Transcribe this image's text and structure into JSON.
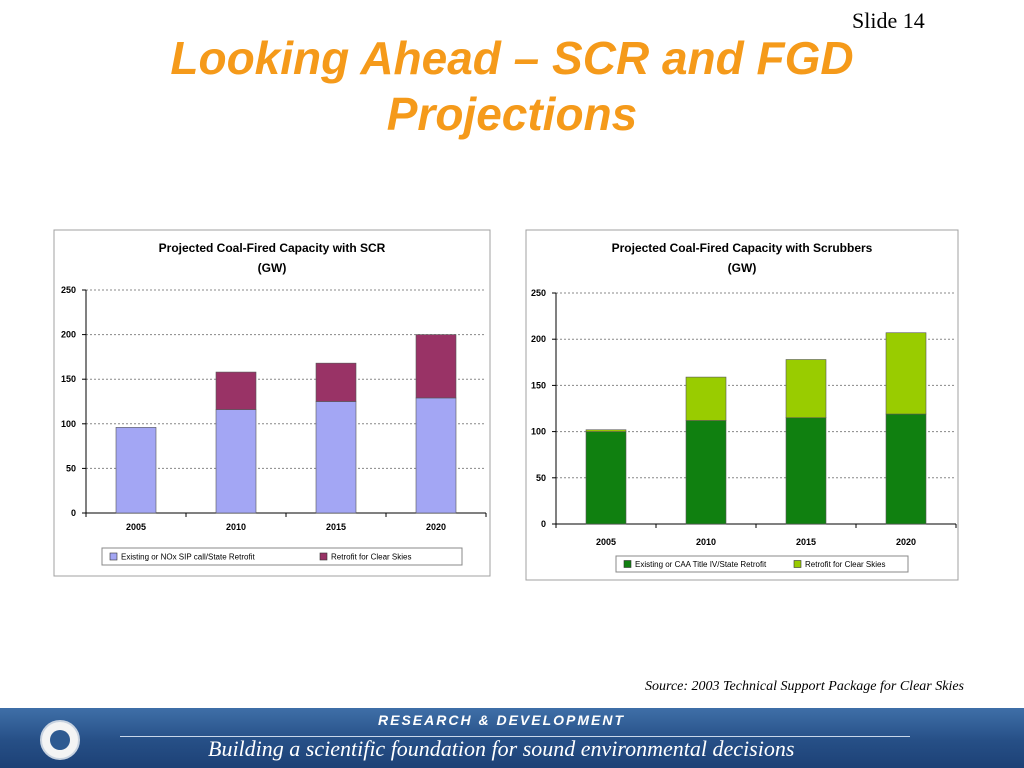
{
  "slide": {
    "number_label": "Slide 14",
    "title_line1": "Looking Ahead – SCR and FGD",
    "title_line2": "Projections"
  },
  "source": "Source: 2003 Technical Support Package for Clear Skies",
  "footer": {
    "heading": "RESEARCH & DEVELOPMENT",
    "tagline": "Building a scientific foundation for sound environmental decisions"
  },
  "chart_data": [
    {
      "type": "bar",
      "stacked": true,
      "title": "Projected Coal-Fired Capacity with SCR",
      "subtitle": "(GW)",
      "categories": [
        "2005",
        "2010",
        "2015",
        "2020"
      ],
      "series": [
        {
          "name": "Existing or NOx SIP call/State Retrofit",
          "values": [
            96,
            116,
            125,
            129
          ],
          "color": "#a3a6f4"
        },
        {
          "name": "Retrofit for Clear Skies",
          "values": [
            0,
            42,
            43,
            71
          ],
          "color": "#993366"
        }
      ],
      "ylim": [
        0,
        250
      ],
      "yticks": [
        0,
        50,
        100,
        150,
        200,
        250
      ],
      "grid": true,
      "legend": "bottom"
    },
    {
      "type": "bar",
      "stacked": true,
      "title": "Projected Coal-Fired Capacity with Scrubbers",
      "subtitle": "(GW)",
      "categories": [
        "2005",
        "2010",
        "2015",
        "2020"
      ],
      "series": [
        {
          "name": "Existing or CAA Title IV/State Retrofit",
          "values": [
            100,
            112,
            115,
            119
          ],
          "color": "#108010"
        },
        {
          "name": "Retrofit for Clear Skies",
          "values": [
            2,
            47,
            63,
            88
          ],
          "color": "#99cc00"
        }
      ],
      "ylim": [
        0,
        250
      ],
      "yticks": [
        0,
        50,
        100,
        150,
        200,
        250
      ],
      "grid": true,
      "legend": "bottom"
    }
  ]
}
